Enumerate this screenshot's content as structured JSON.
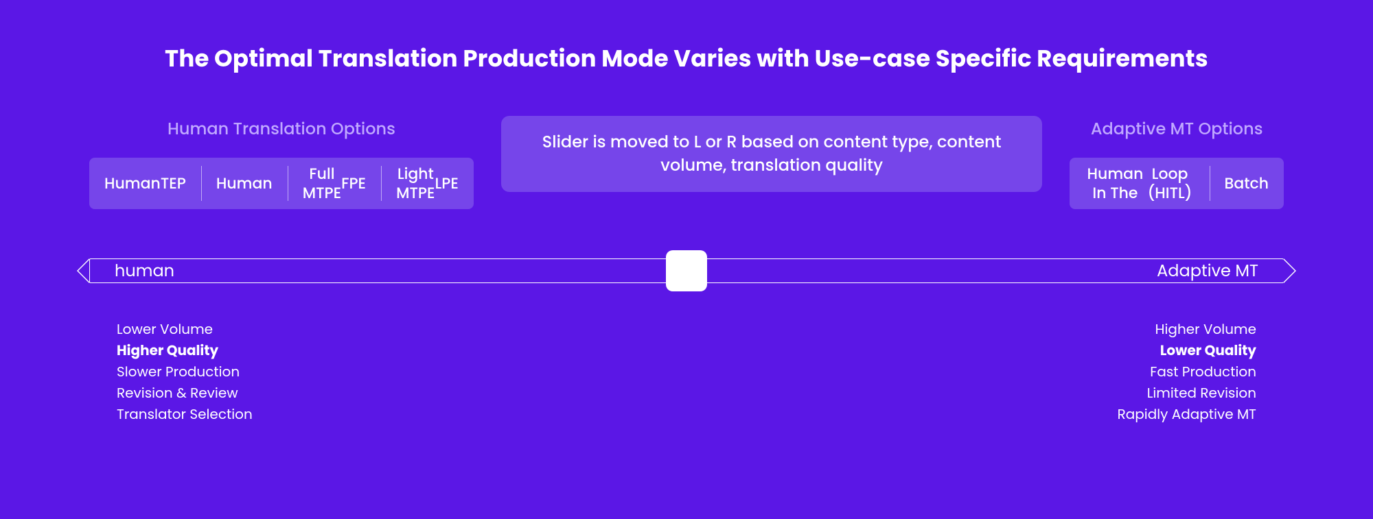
{
  "title": "The Optimal Translation Production Mode Varies with Use-case Specific Requirements",
  "colors": {
    "background": "#5b17e6",
    "chip_bg": "#7645ea",
    "label_muted": "#c0a8ff",
    "text": "#ffffff",
    "handle": "#ffffff"
  },
  "human_group": {
    "label": "Human Translation Options",
    "options": [
      "Human\nTEP",
      "Human",
      "Full MTPE\nFPE",
      "Light MTPE\nLPE"
    ]
  },
  "center_card": {
    "text": "Slider is moved to L or R based on content type, content volume, translation quality"
  },
  "mt_group": {
    "label": "Adaptive MT Options",
    "options": [
      "Human In The\nLoop (HITL)",
      "Batch"
    ]
  },
  "slider": {
    "left_label": "human",
    "right_label": "Adaptive MT",
    "handle_position_pct": 50
  },
  "left_attrs": [
    {
      "text": "Lower Volume",
      "bold": false
    },
    {
      "text": "Higher Quality",
      "bold": true
    },
    {
      "text": "Slower Production",
      "bold": false
    },
    {
      "text": "Revision & Review",
      "bold": false
    },
    {
      "text": "Translator Selection",
      "bold": false
    }
  ],
  "right_attrs": [
    {
      "text": "Higher Volume",
      "bold": false
    },
    {
      "text": "Lower Quality",
      "bold": true
    },
    {
      "text": "Fast Production",
      "bold": false
    },
    {
      "text": "Limited Revision",
      "bold": false
    },
    {
      "text": "Rapidly Adaptive MT",
      "bold": false
    }
  ]
}
